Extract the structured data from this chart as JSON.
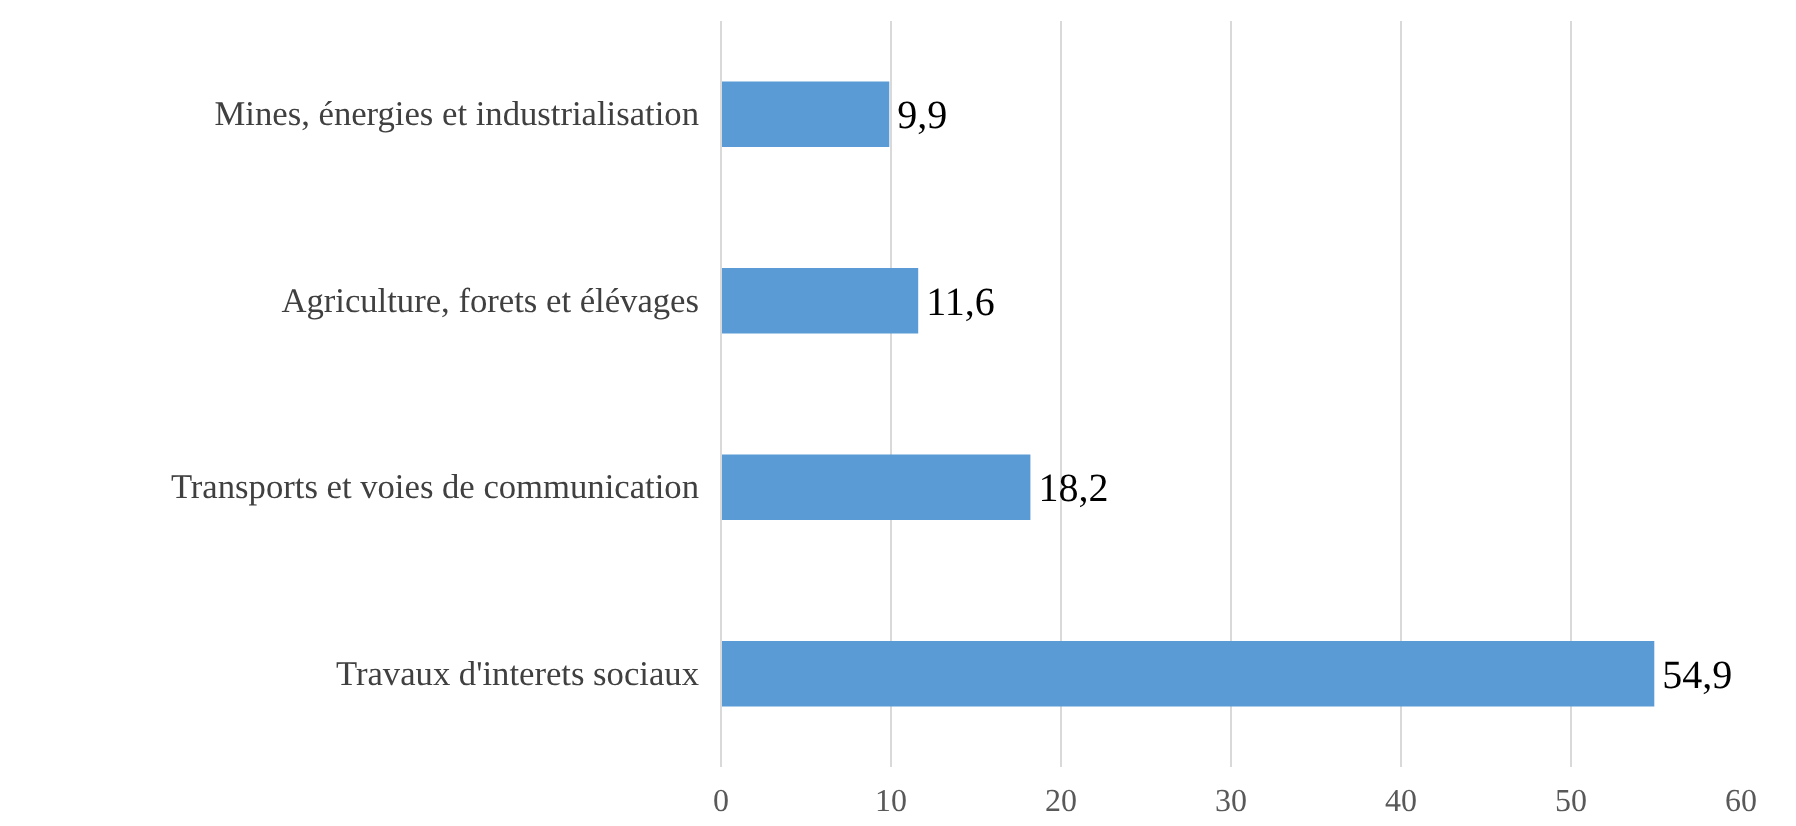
{
  "chart_data": {
    "type": "bar",
    "orientation": "horizontal",
    "categories": [
      "Mines, énergies et industrialisation",
      "Agriculture, forets et élévages",
      "Transports et voies de communication",
      "Travaux d'interets sociaux"
    ],
    "values": [
      9.9,
      11.6,
      18.2,
      54.9
    ],
    "value_labels": [
      "9,9",
      "11,6",
      "18,2",
      "54,9"
    ],
    "color": "#5b9bd5",
    "xlim": [
      0,
      60
    ],
    "xticks": [
      0,
      10,
      20,
      30,
      40,
      50,
      60
    ],
    "grid": "x"
  }
}
